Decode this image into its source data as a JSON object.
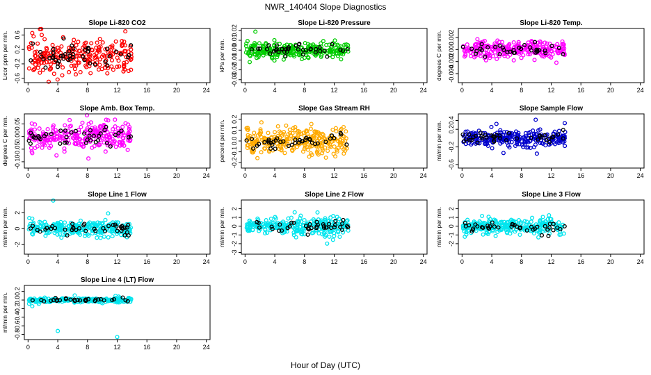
{
  "figure": {
    "title": "NWR_140404  Slope Diagnostics",
    "xlabel": "Hour of Day (UTC)"
  },
  "chart_data": [
    {
      "type": "scatter",
      "title": "Slope Li-820 CO2",
      "ylabel": "Licor ppm per min.",
      "color": "#ff0000",
      "xlim": [
        -0.5,
        24.5
      ],
      "ylim": [
        -0.72,
        0.78
      ],
      "xticks": [
        0,
        4,
        8,
        12,
        16,
        20,
        24
      ],
      "yticks": [
        -0.6,
        -0.2,
        0.2,
        0.6
      ],
      "ytick_labels": [
        "-0.6",
        "-0.2",
        "0.2",
        "0.6"
      ],
      "x_range": [
        0.1,
        13.9
      ],
      "spread": 0.42,
      "n": 240,
      "n_black": 45
    },
    {
      "type": "scatter",
      "title": "Slope Li-820 Pressure",
      "ylabel": "kPa per min.",
      "color": "#00cc00",
      "xlim": [
        -0.5,
        24.5
      ],
      "ylim": [
        -0.033,
        0.022
      ],
      "xticks": [
        0,
        4,
        8,
        12,
        16,
        20,
        24
      ],
      "yticks": [
        -0.03,
        -0.02,
        -0.01,
        0.0,
        0.01,
        0.02
      ],
      "ytick_labels": [
        "-0.03",
        "-0.02",
        "-0.01",
        "0.00",
        "0.01",
        "0.02"
      ],
      "x_range": [
        0.1,
        13.9
      ],
      "spread": 0.0075,
      "n": 260,
      "n_black": 40
    },
    {
      "type": "scatter",
      "title": "Slope Li-820 Temp.",
      "ylabel": "degrees C per min.",
      "color": "#ff00ff",
      "xlim": [
        -0.5,
        24.5
      ],
      "ylim": [
        -0.0055,
        0.0035
      ],
      "xticks": [
        0,
        4,
        8,
        12,
        16,
        20,
        24
      ],
      "yticks": [
        -0.004,
        -0.002,
        0.0,
        0.002
      ],
      "ytick_labels": [
        "-0.004",
        "-0.002",
        "0.000",
        "0.002"
      ],
      "x_range": [
        0.1,
        13.9
      ],
      "spread": 0.0013,
      "n": 240,
      "n_black": 35
    },
    {
      "type": "scatter",
      "title": "Slope Amb. Box Temp.",
      "ylabel": "degrees C per min.",
      "color": "#ff00ff",
      "xlim": [
        -0.5,
        24.5
      ],
      "ylim": [
        -0.125,
        0.09
      ],
      "xticks": [
        0,
        4,
        8,
        12,
        16,
        20,
        24
      ],
      "yticks": [
        -0.1,
        -0.05,
        0.0,
        0.05
      ],
      "ytick_labels": [
        "-0.10",
        "-0.05",
        "0.00",
        "0.05"
      ],
      "x_range": [
        0.1,
        13.9
      ],
      "spread": 0.045,
      "n": 260,
      "n_black": 40
    },
    {
      "type": "scatter",
      "title": "Slope Gas Stream RH",
      "ylabel": "percent per min.",
      "color": "#ffaa00",
      "xlim": [
        -0.5,
        24.5
      ],
      "ylim": [
        -0.25,
        0.25
      ],
      "xticks": [
        0,
        4,
        8,
        12,
        16,
        20,
        24
      ],
      "yticks": [
        -0.2,
        -0.1,
        0.0,
        0.1,
        0.2
      ],
      "ytick_labels": [
        "-0.2",
        "-0.1",
        "0.0",
        "0.1",
        "0.2"
      ],
      "x_range": [
        0.1,
        13.9
      ],
      "spread": 0.11,
      "n": 280,
      "n_black": 40
    },
    {
      "type": "scatter",
      "title": "Slope Sample Flow",
      "ylabel": "ml/min per min.",
      "color": "#0000cc",
      "xlim": [
        -0.5,
        24.5
      ],
      "ylim": [
        -0.68,
        0.55
      ],
      "xticks": [
        0,
        4,
        8,
        12,
        16,
        20,
        24
      ],
      "yticks": [
        -0.6,
        -0.2,
        0.2,
        0.4
      ],
      "ytick_labels": [
        "-0.6",
        "-0.2",
        "0.2",
        "0.4"
      ],
      "x_range": [
        0.1,
        13.9
      ],
      "spread": 0.17,
      "n": 260,
      "n_black": 40
    },
    {
      "type": "scatter",
      "title": "Slope Line 1 Flow",
      "ylabel": "ml/min per min.",
      "color": "#00e5ee",
      "xlim": [
        -0.5,
        24.5
      ],
      "ylim": [
        -3.2,
        3.6
      ],
      "xticks": [
        0,
        4,
        8,
        12,
        16,
        20,
        24
      ],
      "yticks": [
        -2,
        0,
        2
      ],
      "ytick_labels": [
        "-2",
        "0",
        "2"
      ],
      "x_range": [
        0.1,
        13.9
      ],
      "spread": 0.9,
      "n": 260,
      "n_black": 40
    },
    {
      "type": "scatter",
      "title": "Slope Line 2 Flow",
      "ylabel": "ml/min per min.",
      "color": "#00e5ee",
      "xlim": [
        -0.5,
        24.5
      ],
      "ylim": [
        -3.2,
        3.0
      ],
      "xticks": [
        0,
        4,
        8,
        12,
        16,
        20,
        24
      ],
      "yticks": [
        -3,
        -2,
        -1,
        0,
        1,
        2
      ],
      "ytick_labels": [
        "-3",
        "-2",
        "-1",
        "0",
        "1",
        "2"
      ],
      "x_range": [
        0.1,
        13.9
      ],
      "spread": 0.8,
      "n": 260,
      "n_black": 40
    },
    {
      "type": "scatter",
      "title": "Slope Line 3 Flow",
      "ylabel": "ml/min per min.",
      "color": "#00e5ee",
      "xlim": [
        -0.5,
        24.5
      ],
      "ylim": [
        -3.2,
        3.0
      ],
      "xticks": [
        0,
        4,
        8,
        12,
        16,
        20,
        24
      ],
      "yticks": [
        -2,
        -1,
        0,
        1,
        2
      ],
      "ytick_labels": [
        "-2",
        "-1",
        "0",
        "1",
        "2"
      ],
      "x_range": [
        0.1,
        13.9
      ],
      "spread": 0.75,
      "n": 260,
      "n_black": 40
    },
    {
      "type": "scatter",
      "title": "Slope Line 4 (LT) Flow",
      "ylabel": "ml/min per min.",
      "color": "#00e5ee",
      "xlim": [
        -0.5,
        24.5
      ],
      "ylim": [
        -0.92,
        0.34
      ],
      "xticks": [
        0,
        4,
        8,
        12,
        16,
        20,
        24
      ],
      "yticks": [
        -0.8,
        -0.6,
        -0.4,
        -0.2,
        0.0,
        0.2
      ],
      "ytick_labels": [
        "-0.8",
        "-0.6",
        "-0.4",
        "-0.2",
        "0.0",
        "0.2"
      ],
      "x_range": [
        0.1,
        13.9
      ],
      "spread": 0.05,
      "n": 220,
      "n_black": 30,
      "outliers": [
        [
          4.0,
          -0.72
        ],
        [
          12.0,
          -0.86
        ]
      ]
    }
  ]
}
